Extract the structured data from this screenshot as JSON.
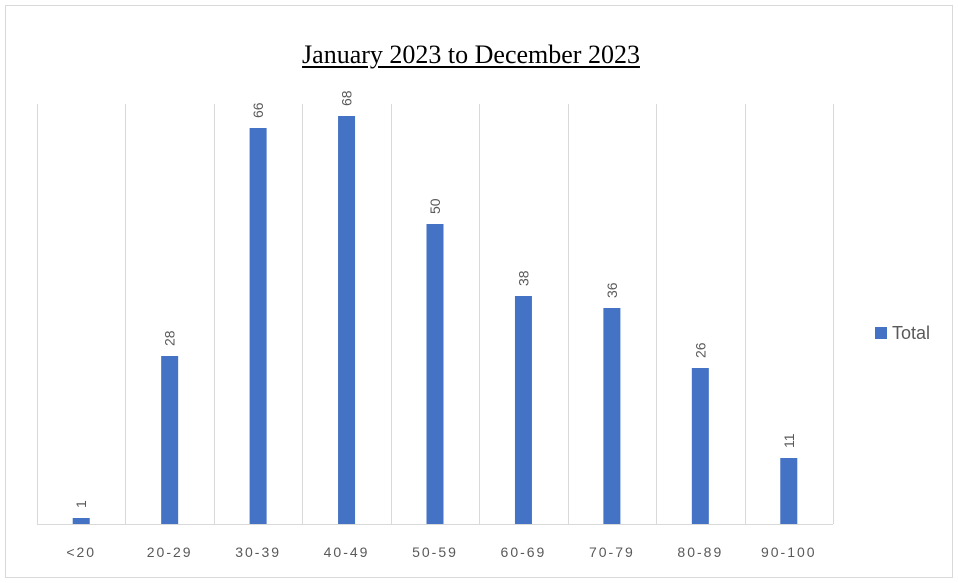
{
  "chart_data": {
    "type": "bar",
    "title": "January 2023 to December 2023",
    "categories": [
      "<20",
      "20-29",
      "30-39",
      "40-49",
      "50-59",
      "60-69",
      "70-79",
      "80-89",
      "90-100"
    ],
    "series": [
      {
        "name": "Total",
        "values": [
          1,
          28,
          66,
          68,
          50,
          38,
          36,
          26,
          11
        ],
        "color": "#4472c4"
      }
    ],
    "data_labels": true,
    "ylim": [
      0,
      70
    ],
    "grid": {
      "vertical": true,
      "horizontal": false
    },
    "legend_position": "right",
    "colors": {
      "bar": "#4472c4",
      "grid": "#d9d9d9",
      "label": "#595959"
    }
  }
}
